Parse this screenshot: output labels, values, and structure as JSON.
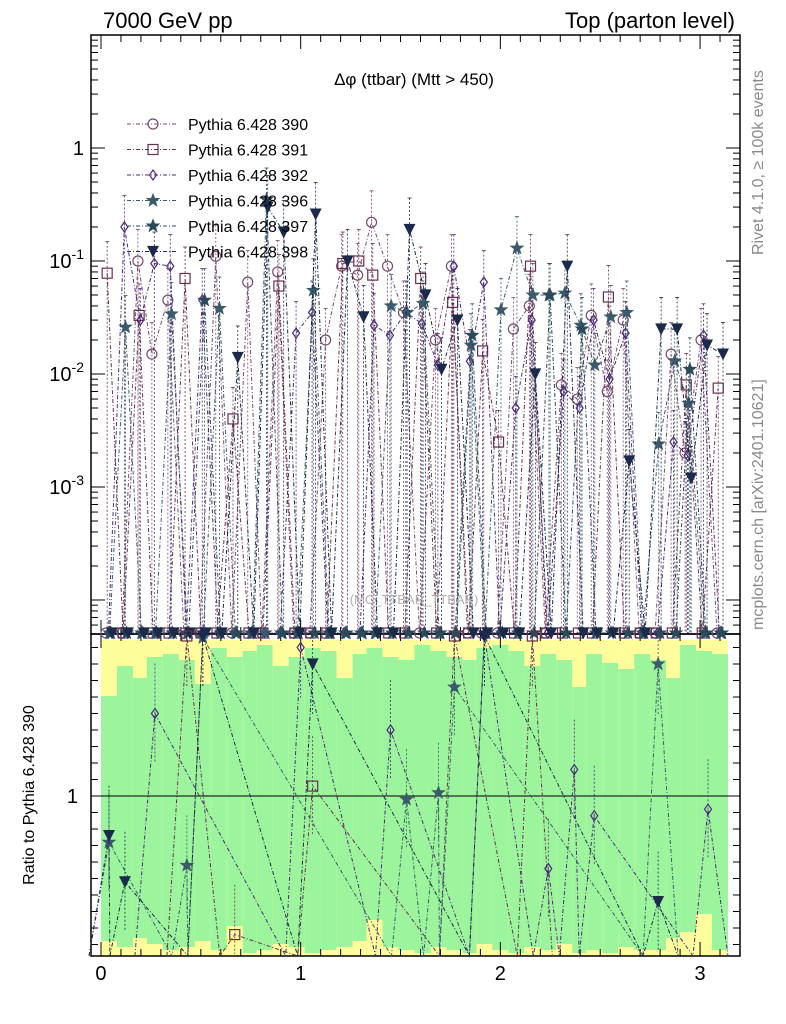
{
  "header": {
    "left": "7000 GeV pp",
    "right": "Top (parton level)"
  },
  "side_labels": {
    "rivet": "Rivet 4.1.0, ≥ 100k events",
    "mcplots": "mcplots.cern.ch [arXiv:2401.10621]"
  },
  "watermark": "(MC_TTBAR_TTBAR)",
  "colors": {
    "s390": "#7b4a6b",
    "s391": "#6b2f4f",
    "s392": "#4b2a7b",
    "s396": "#3b5a6b",
    "s397": "#2b4b5b",
    "s398": "#1b2a4b",
    "band_green": "#9cf59c",
    "band_yellow": "#fdfd9c"
  },
  "chart_data": {
    "type": "line",
    "title": "Δφ (ttbar) (Mtt > 450)",
    "xlabel": "",
    "ylabel": "",
    "xlim": [
      -0.05,
      3.2
    ],
    "ylim": [
      5e-05,
      10
    ],
    "yscale": "log",
    "x_ticks": [
      "0",
      "1",
      "2",
      "3"
    ],
    "y_ticks": [
      "10^-3",
      "10^-2",
      "10^-1",
      "1"
    ],
    "legend_position": "top-left",
    "x": [
      0.04,
      0.12,
      0.2,
      0.27,
      0.35,
      0.43,
      0.51,
      0.59,
      0.67,
      0.75,
      0.82,
      0.9,
      0.98,
      1.06,
      1.14,
      1.22,
      1.3,
      1.37,
      1.45,
      1.53,
      1.61,
      1.69,
      1.77,
      1.85,
      1.92,
      2.0,
      2.08,
      2.16,
      2.24,
      2.32,
      2.4,
      2.47,
      2.55,
      2.63,
      2.71,
      2.79,
      2.87,
      2.94,
      3.02,
      3.1
    ],
    "series": [
      {
        "name": "Pythia 6.428 390",
        "marker": "circle",
        "values": [
          0,
          0,
          0.1,
          0.015,
          0.045,
          0,
          0,
          0.11,
          0,
          0.065,
          0,
          0.08,
          0,
          0,
          0.02,
          0.09,
          0.075,
          0.22,
          0.09,
          0.035,
          0,
          0.02,
          0.09,
          0,
          0,
          0,
          0.025,
          0.04,
          0,
          0.008,
          0.006,
          0.033,
          0.007,
          0.03,
          0,
          0,
          0.015,
          0.002,
          0.02,
          0
        ]
      },
      {
        "name": "Pythia 6.428 391",
        "marker": "square",
        "values": [
          0.078,
          0,
          0.033,
          0,
          0,
          0.07,
          0,
          0,
          0.004,
          0,
          0,
          0.06,
          0,
          0,
          0,
          0.095,
          0.1,
          0.075,
          0,
          0,
          0.07,
          0,
          0.043,
          0,
          0.016,
          0.0025,
          0,
          0.09,
          0,
          0,
          0,
          0,
          0.048,
          0,
          0,
          0,
          0,
          0.008,
          0,
          0.0075
        ]
      },
      {
        "name": "Pythia 6.428 392",
        "marker": "diamond",
        "values": [
          0,
          0.2,
          0.03,
          0.095,
          0.09,
          0,
          0.045,
          0,
          0,
          0,
          0,
          0,
          0.023,
          0.035,
          0,
          0,
          0,
          0.027,
          0.022,
          0.035,
          0.028,
          0.012,
          0.09,
          0.013,
          0.065,
          0,
          0.005,
          0.03,
          0,
          0.007,
          0.005,
          0.03,
          0.009,
          0.023,
          0,
          0,
          0.0025,
          0.0019,
          0.022,
          0
        ]
      },
      {
        "name": "Pythia 6.428 396",
        "marker": "star",
        "values": [
          0,
          0.026,
          0,
          0,
          0.034,
          0,
          0,
          0.038,
          0,
          0,
          0,
          0,
          0,
          0.055,
          0,
          0,
          0,
          0,
          0.04,
          0.035,
          0.042,
          0,
          0,
          0.018,
          0,
          0.037,
          0.13,
          0.05,
          0.05,
          0.052,
          0.027,
          0.012,
          0.032,
          0.035,
          0,
          0.0024,
          0.013,
          0.0055,
          0,
          0
        ]
      },
      {
        "name": "Pythia 6.428 397",
        "marker": "star",
        "values": [
          0,
          0,
          0,
          0,
          0,
          0,
          0.045,
          0,
          0,
          0,
          0.35,
          0,
          0,
          0,
          0,
          0,
          0,
          0,
          0,
          0,
          0,
          0,
          0,
          0.022,
          0,
          0,
          0,
          0,
          0.05,
          0,
          0.025,
          0,
          0,
          0,
          0,
          0,
          0,
          0.011,
          0,
          0
        ]
      },
      {
        "name": "Pythia 6.428 398",
        "marker": "triangle-down",
        "values": [
          0,
          0,
          0,
          0,
          0,
          0,
          0,
          0,
          0.014,
          0,
          0.3,
          0.18,
          0,
          0.26,
          0,
          0.1,
          0.032,
          0,
          0,
          0.19,
          0.05,
          0.011,
          0.03,
          0,
          0,
          0,
          0,
          0.01,
          0,
          0.09,
          0,
          0,
          0,
          0.0017,
          0,
          0.025,
          0.025,
          0.0012,
          0.018,
          0.015
        ]
      }
    ],
    "ratio": {
      "ylabel": "Ratio to Pythia 6.428 390",
      "y_ticks": [
        "1"
      ],
      "points": [
        {
          "series": "Pythia 6.428 391",
          "x": [
            0.43,
            0.67,
            1.06,
            1.77,
            2.16
          ],
          "y": [
            1.5,
            0.58,
            1.03,
            1.68,
            1.78
          ]
        },
        {
          "series": "Pythia 6.428 392",
          "x": [
            0.27,
            1.0,
            1.45,
            1.92,
            2.24,
            2.37,
            2.47,
            3.04
          ],
          "y": [
            1.25,
            1.45,
            1.2,
            1.55,
            0.78,
            1.08,
            0.94,
            0.96
          ]
        },
        {
          "series": "Pythia 6.428 396",
          "x": [
            0.04,
            0.43,
            0.51,
            1.53,
            1.69,
            1.77,
            2.79
          ],
          "y": [
            0.86,
            0.79,
            1.48,
            0.99,
            1.01,
            1.33,
            1.4
          ]
        },
        {
          "series": "Pythia 6.428 398",
          "x": [
            0.04,
            0.12,
            0.51,
            1.06,
            1.92,
            2.79
          ],
          "y": [
            0.88,
            0.74,
            1.8,
            1.4,
            1.88,
            0.68
          ]
        }
      ]
    }
  }
}
